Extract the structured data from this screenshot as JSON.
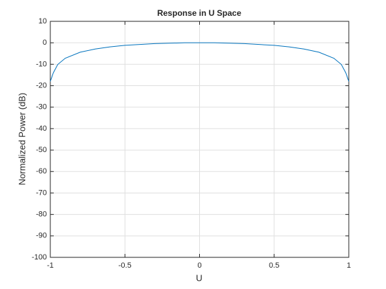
{
  "chart_data": {
    "type": "line",
    "title": "Response in U Space",
    "xlabel": "U",
    "ylabel": "Normalized Power (dB)",
    "x": [
      -1,
      -0.98,
      -0.95,
      -0.9,
      -0.8,
      -0.7,
      -0.6,
      -0.5,
      -0.4,
      -0.3,
      -0.2,
      -0.1,
      0,
      0.1,
      0.2,
      0.3,
      0.4,
      0.5,
      0.6,
      0.7,
      0.8,
      0.9,
      0.95,
      0.98,
      1
    ],
    "series": [
      {
        "color": "#0072bd",
        "values": [
          -18,
          -14,
          -10.1,
          -7.2,
          -4.4,
          -2.9,
          -1.9,
          -1.2,
          -0.8,
          -0.4,
          -0.2,
          0,
          0,
          0,
          -0.2,
          -0.4,
          -0.8,
          -1.2,
          -1.9,
          -2.9,
          -4.4,
          -7.2,
          -10.1,
          -14,
          -18
        ]
      }
    ],
    "xlim": [
      -1,
      1
    ],
    "xticks": [
      -1,
      -0.5,
      0,
      0.5,
      1
    ],
    "ylim": [
      -100,
      10
    ],
    "yticks": [
      -100,
      -90,
      -80,
      -70,
      -60,
      -50,
      -40,
      -30,
      -20,
      -10,
      0,
      10
    ],
    "grid": true
  }
}
